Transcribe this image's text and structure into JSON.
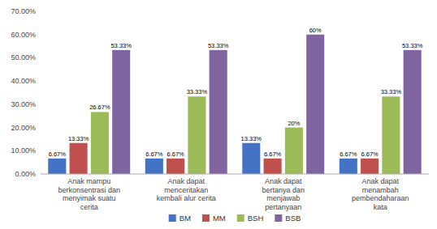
{
  "chart_data": {
    "type": "bar",
    "categories": [
      "Anak mampu\nberkonsentrasi dan\nmenyimak suatu\ncerita",
      "Anak dapat\nmenceritakan\nkembali alur cerita",
      "Anak dapat\nbertanya dan\nmenjawab\npertanyaan",
      "Anak dapat\nmenambah\npembendaharaan\nkata"
    ],
    "series": [
      {
        "name": "BM",
        "color": "#4472C4",
        "values": [
          6.67,
          6.67,
          13.33,
          6.67
        ],
        "value_labels": [
          "6.67%",
          "6.67%",
          "13.33%",
          "6.67%"
        ]
      },
      {
        "name": "MM",
        "color": "#C0504D",
        "values": [
          13.33,
          6.67,
          6.67,
          6.67
        ],
        "value_labels": [
          "13.33%",
          "6.67%",
          "6.67%",
          "6.67%"
        ]
      },
      {
        "name": "BSH",
        "color": "#9BBB59",
        "values": [
          26.67,
          33.33,
          20.0,
          33.33
        ],
        "value_labels": [
          "26.67%",
          "33.33%",
          "20%",
          "33.33%"
        ]
      },
      {
        "name": "BSB",
        "color": "#8064A2",
        "values": [
          53.33,
          53.33,
          60.0,
          53.33
        ],
        "value_labels": [
          "53.33%",
          "53.33%",
          "60%",
          "53.33%"
        ]
      }
    ],
    "ylim": [
      0,
      70
    ],
    "yticks": [
      {
        "value": 0,
        "label": "0.00%"
      },
      {
        "value": 10,
        "label": "10.00%"
      },
      {
        "value": 20,
        "label": "20.00%"
      },
      {
        "value": 30,
        "label": "30.00%"
      },
      {
        "value": 40,
        "label": "40.00%"
      },
      {
        "value": 50,
        "label": "50.00%"
      },
      {
        "value": 60,
        "label": "60.00%"
      },
      {
        "value": 70,
        "label": "70.00%"
      }
    ],
    "grid": false,
    "data_labels": true,
    "legend": "bottom"
  }
}
